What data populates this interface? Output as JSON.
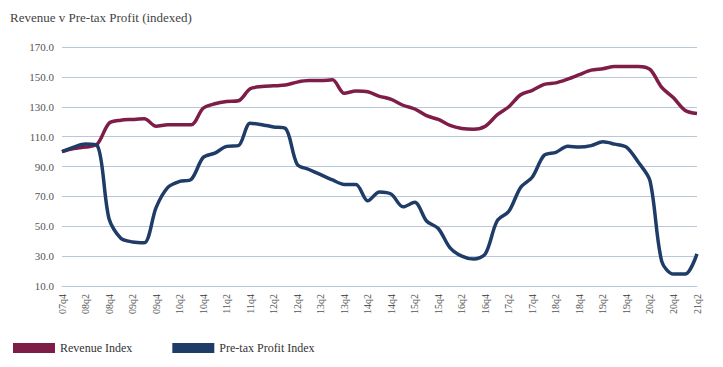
{
  "chart_data": {
    "type": "line",
    "title": "Revenue v Pre-tax Profit (indexed)",
    "categories": [
      "07q4",
      null,
      "08q2",
      null,
      "08q4",
      null,
      "09q2",
      null,
      "09q4",
      null,
      "10q2",
      null,
      "10q4",
      null,
      "11q2",
      null,
      "11q4",
      null,
      "12q2",
      null,
      "12q4",
      null,
      "13q2",
      null,
      "13q4",
      null,
      "14q2",
      null,
      "14q4",
      null,
      "15q2",
      null,
      "15q4",
      null,
      "16q2",
      null,
      "16q4",
      null,
      "17q2",
      null,
      "17q4",
      null,
      "18q2",
      null,
      "18q4",
      null,
      "19q2",
      null,
      "19q4",
      null,
      "20q2",
      null,
      "20q4",
      null,
      "21q2"
    ],
    "series": [
      {
        "name": "Revenue Index",
        "color": "#7e1d47",
        "values": [
          100,
          102,
          103,
          105,
          119,
          121,
          121.5,
          122,
          117,
          118,
          118,
          118,
          129,
          132,
          133.5,
          134,
          142,
          143.5,
          144,
          144.5,
          146.5,
          147.5,
          147.5,
          148,
          139,
          140.5,
          140,
          137,
          135,
          131,
          128.5,
          124,
          121.5,
          117.5,
          115.5,
          115,
          117,
          124.5,
          130,
          138,
          141,
          145,
          146,
          148.5,
          151.5,
          154.5,
          155.5,
          157,
          157,
          157,
          155,
          143,
          136,
          127.5,
          125.5
        ]
      },
      {
        "name": "Pre-tax Profit Index",
        "color": "#1f3c68",
        "values": [
          100,
          103,
          105,
          104,
          55,
          42,
          39.5,
          39,
          62.5,
          76,
          80,
          81.5,
          96,
          99,
          103.5,
          104,
          119,
          118,
          116.5,
          115.5,
          91.5,
          88,
          84.5,
          81,
          78,
          78,
          67,
          73,
          71.5,
          63,
          66,
          53.5,
          48.5,
          35.5,
          30,
          28,
          31.5,
          53.5,
          60,
          76,
          83,
          97.5,
          99.5,
          103.5,
          103,
          104,
          106.5,
          105,
          103,
          93,
          80.5,
          26.5,
          18,
          18,
          31.5
        ]
      }
    ],
    "ylim": [
      10,
      170
    ],
    "yticks": [
      {
        "value": 10,
        "label": "10.0"
      },
      {
        "value": 30,
        "label": "30.0"
      },
      {
        "value": 50,
        "label": "50.0"
      },
      {
        "value": 70,
        "label": "70.0"
      },
      {
        "value": 90,
        "label": "90.0"
      },
      {
        "value": 110,
        "label": "110.0"
      },
      {
        "value": 130,
        "label": "130.0"
      },
      {
        "value": 150,
        "label": "150.0"
      },
      {
        "value": 170,
        "label": "170.0"
      }
    ],
    "grid": true,
    "legend": "bottom-left"
  }
}
